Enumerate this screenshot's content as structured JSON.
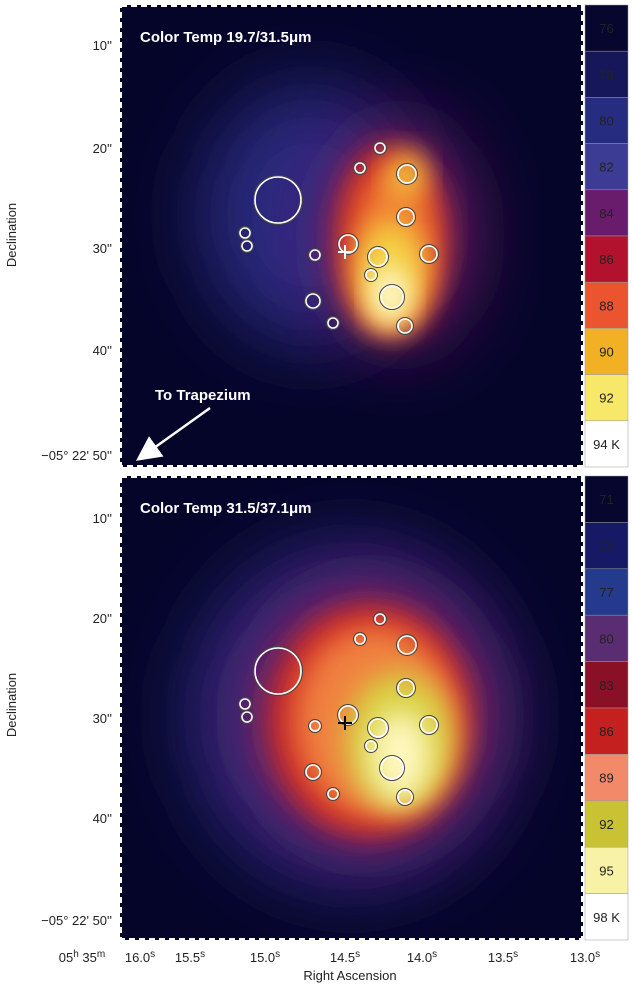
{
  "panels": [
    {
      "title": "Color Temp 19.7/31.5μm",
      "colorbar": [
        "76",
        "78",
        "80",
        "82",
        "84",
        "86",
        "88",
        "90",
        "92",
        "94 K"
      ]
    },
    {
      "title": "Color Temp 31.5/37.1μm",
      "colorbar": [
        "71",
        "74",
        "77",
        "80",
        "83",
        "86",
        "89",
        "92",
        "95",
        "98 K"
      ]
    }
  ],
  "annotation": "To Trapezium",
  "y_label": "Declination",
  "x_label": "Right Ascension",
  "y_ticks": [
    "10''",
    "20''",
    "30''",
    "40''",
    "−05° 22' 50''"
  ],
  "x_ticks": [
    [
      [
        "05",
        "h"
      ],
      [
        " 35",
        "m"
      ]
    ],
    [
      [
        "16.0",
        "s"
      ]
    ],
    [
      [
        "15.5",
        "s"
      ]
    ],
    [
      [
        "15.0",
        "s"
      ]
    ],
    [
      [
        "14.5",
        "s"
      ]
    ],
    [
      [
        "14.0",
        "s"
      ]
    ],
    [
      [
        "13.5",
        "s"
      ]
    ],
    [
      [
        "13.0",
        "s"
      ]
    ]
  ]
}
